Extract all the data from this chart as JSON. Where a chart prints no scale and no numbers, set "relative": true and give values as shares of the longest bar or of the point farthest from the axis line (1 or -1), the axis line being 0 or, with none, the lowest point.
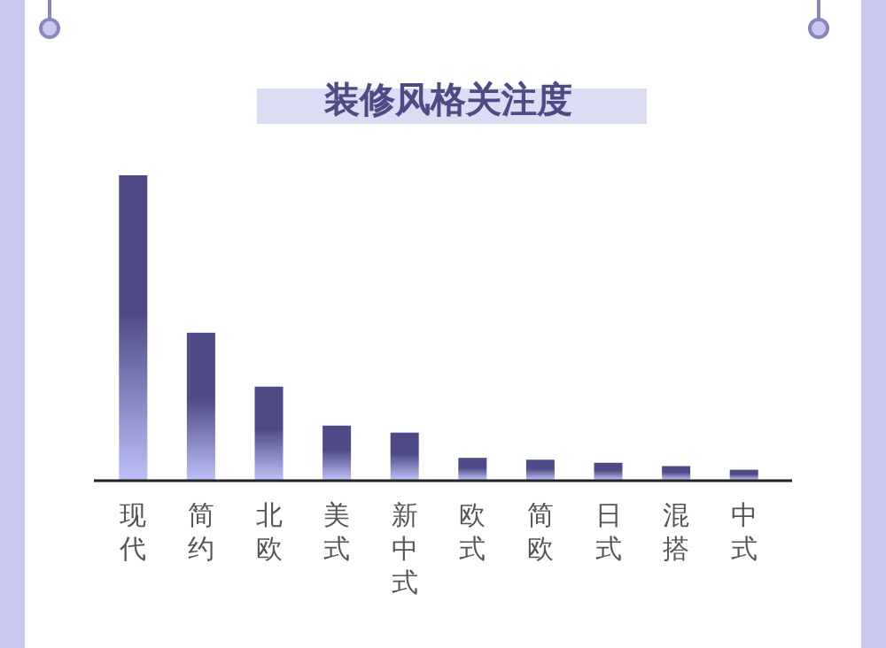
{
  "chart_data": {
    "type": "bar",
    "title": "装修风格关注度",
    "relative": true,
    "categories": [
      "现代",
      "简约",
      "北欧",
      "美式",
      "新中式",
      "欧式",
      "简欧",
      "日式",
      "混搭",
      "中式"
    ],
    "values": [
      1,
      0.483,
      0.306,
      0.178,
      0.155,
      0.072,
      0.066,
      0.056,
      0.045,
      0.033
    ],
    "color": "#4e4a85"
  }
}
